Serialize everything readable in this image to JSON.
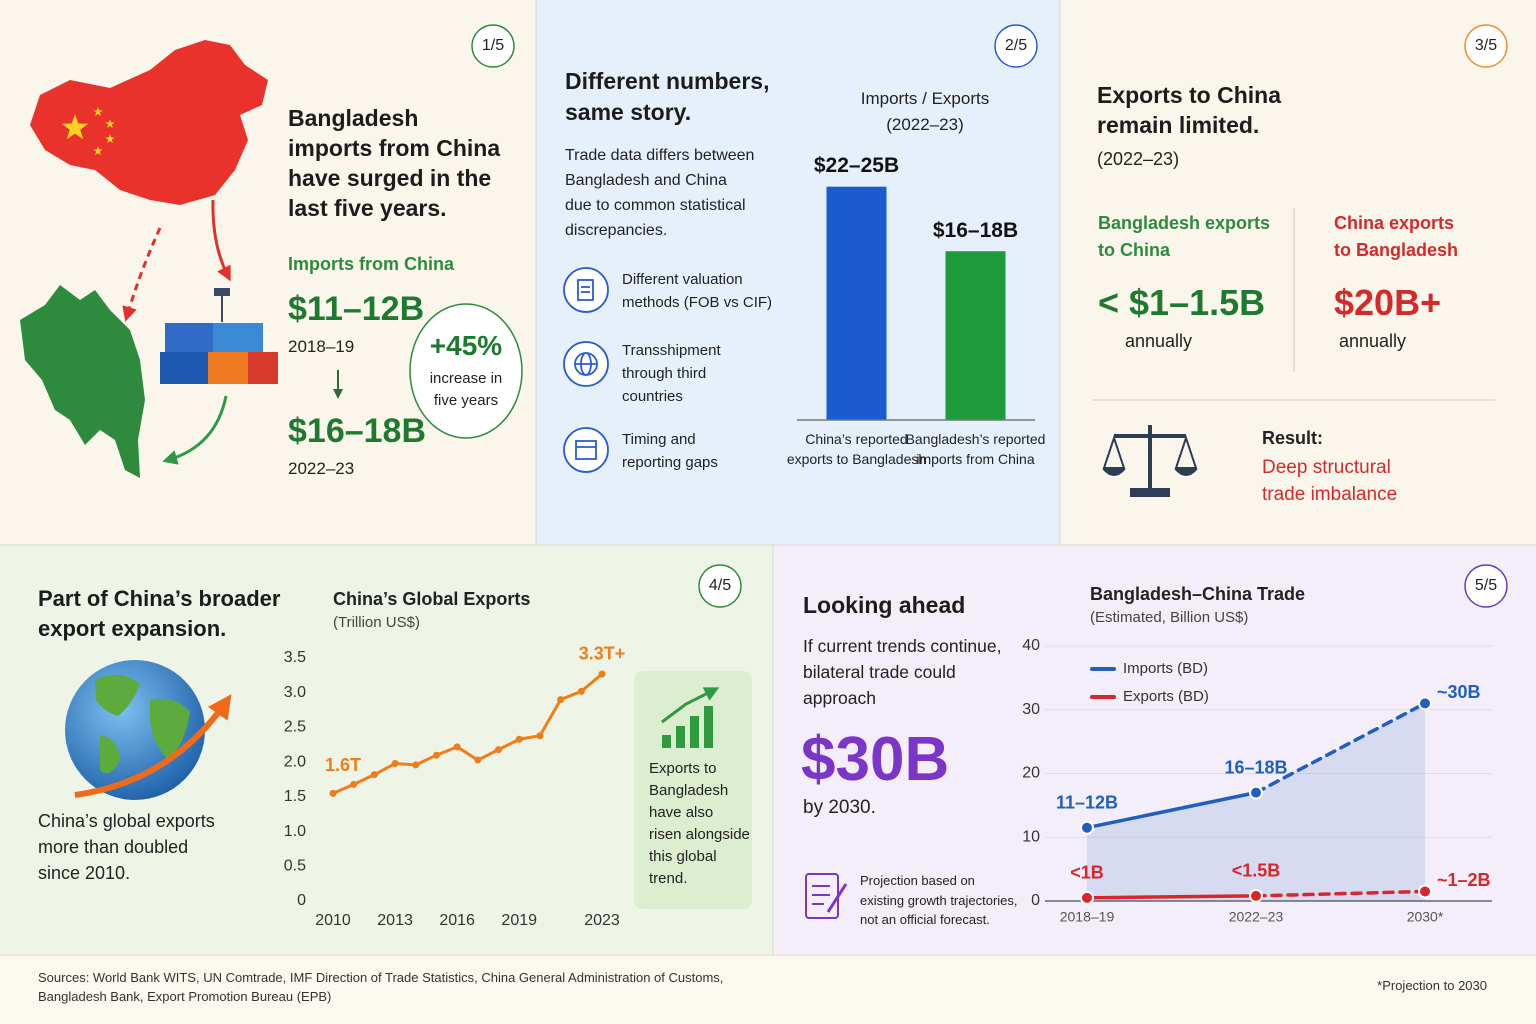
{
  "panels": [
    {
      "badge": "1/5",
      "title": "Bangladesh\nimports from China\nhave surged in the\nlast five years.",
      "subtitle": "Imports from China",
      "value_start": "$11–12B",
      "period_start": "2018–19",
      "value_end": "$16–18B",
      "period_end": "2022–23",
      "change": "+45%",
      "change_text": "increase in\nfive years"
    },
    {
      "badge": "2/5",
      "title": "Different numbers,\nsame story.",
      "text": "Trade data differs between\nBangladesh and China\ndue to common statistical\ndiscrepancies.",
      "reasons": [
        "Different valuation\nmethods (FOB vs CIF)",
        "Transshipment\nthrough third\ncountries",
        "Timing and\nreporting gaps"
      ]
    },
    {
      "badge": "3/5",
      "title": "Exports to China\nremain limited.",
      "period": "(2022–23)",
      "left": {
        "label": "Bangladesh exports\nto China",
        "value": "< $1–1.5B",
        "unit": "annually"
      },
      "right": {
        "label": "China exports\nto Bangladesh",
        "value": "$20B+",
        "unit": "annually"
      },
      "result_label": "Result:",
      "result": "Deep structural\ntrade imbalance"
    },
    {
      "badge": "4/5",
      "title": "Part of China’s broader\nexport expansion.",
      "text": "China’s global exports\nmore than doubled\nsince 2010.",
      "callout": "Exports to\nBangladesh\nhave also\nrisen alongside\nthis global\ntrend."
    },
    {
      "badge": "5/5",
      "title": "Looking ahead",
      "text": "If current trends continue,\nbilateral trade could\napproach",
      "highlight": "$30B",
      "highlight_note": "by 2030.",
      "note": "Projection based on\nexisting growth trajectories,\nnot an official forecast."
    }
  ],
  "chart_data": [
    {
      "type": "bar",
      "title": "Imports / Exports",
      "subtitle": "(2022–23)",
      "categories": [
        "China’s reported exports to Bangladesh",
        "Bangladesh’s reported imports from China"
      ],
      "values": [
        23.5,
        17
      ],
      "value_labels": [
        "$22–25B",
        "$16–18B"
      ],
      "colors": [
        "#1a5ccf",
        "#1f9a3c"
      ],
      "ylim": [
        0,
        28
      ]
    },
    {
      "type": "line",
      "title": "China’s Global Exports",
      "subtitle": "(Trillion US$)",
      "x": [
        2010,
        2011,
        2012,
        2013,
        2014,
        2015,
        2016,
        2017,
        2018,
        2019,
        2020,
        2021,
        2022,
        2023
      ],
      "values": [
        1.55,
        1.68,
        1.82,
        1.98,
        1.96,
        2.1,
        2.22,
        2.03,
        2.18,
        2.33,
        2.38,
        2.9,
        3.02,
        3.27
      ],
      "color": "#f07d1a",
      "start_label": "1.6T",
      "end_label": "3.3T+",
      "xlim": [
        2010,
        2023
      ],
      "xticks": [
        2010,
        2013,
        2016,
        2019,
        2023
      ],
      "ylim": [
        0,
        3.5
      ],
      "yticks": [
        0,
        0.5,
        {
          "value": 1,
          "label": "1.0"
        },
        1.5,
        {
          "value": 2,
          "label": "2.0"
        },
        2.5,
        {
          "value": 3,
          "label": "3.0"
        },
        3.5
      ],
      "grid": false
    },
    {
      "type": "line",
      "title": "Bangladesh–China Trade",
      "subtitle": "(Estimated, Billion US$)",
      "categories": [
        "2018–19",
        "2022–23",
        "2030*"
      ],
      "series": [
        {
          "name": "Imports (BD)",
          "color": "#1f5fbf",
          "values": [
            11.5,
            17,
            31
          ],
          "value_labels": [
            "11–12B",
            "16–18B",
            "~30B"
          ],
          "fill_area": true
        },
        {
          "name": "Exports (BD)",
          "color": "#d8262b",
          "values": [
            0.5,
            0.8,
            1.5
          ],
          "value_labels": [
            "<1B",
            "<1.5B",
            "~1–2B"
          ]
        }
      ],
      "dashed_from_index": 1,
      "ylim": [
        0,
        40
      ],
      "yticks": [
        0,
        10,
        20,
        30,
        40
      ],
      "grid": true,
      "legend": "upper left"
    }
  ],
  "footer": {
    "sources": "Sources: World Bank WITS, UN Comtrade, IMF Direction of Trade Statistics, China General Administration of Customs,\nBangladesh Bank, Export Promotion Bureau (EPB)",
    "note": "*Projection to 2030"
  }
}
